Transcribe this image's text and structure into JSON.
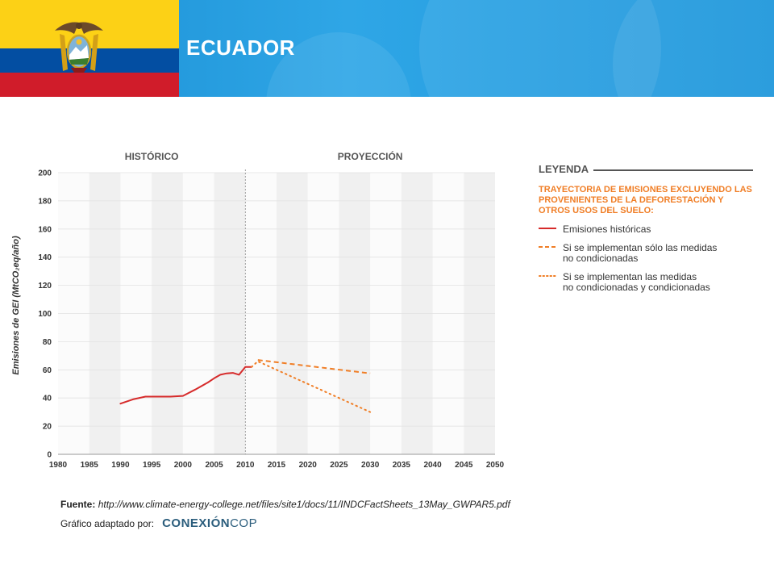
{
  "header": {
    "country": "ECUADOR",
    "accent": "#1a8fd4",
    "flag_colors": [
      "#fcd116",
      "#034ea2",
      "#d01c2a"
    ],
    "emblem": "coat-of-arms-of-ecuador"
  },
  "chart_data": {
    "type": "line",
    "title": "",
    "xlabel": "",
    "ylabel": "Emisiones de GEI (MtCO₂eq/año)",
    "xlim": [
      1980,
      2050
    ],
    "ylim": [
      0,
      200
    ],
    "x_ticks": [
      1980,
      1985,
      1990,
      1995,
      2000,
      2005,
      2010,
      2015,
      2020,
      2025,
      2030,
      2035,
      2040,
      2045,
      2050
    ],
    "y_ticks": [
      0,
      20,
      40,
      60,
      80,
      100,
      120,
      140,
      160,
      180,
      200
    ],
    "sections": [
      {
        "label": "HISTÓRICO",
        "from": 1980,
        "to": 2010
      },
      {
        "label": "PROYECCIÓN",
        "from": 2010,
        "to": 2050
      }
    ],
    "divider_x": 2010,
    "grid": true,
    "series": [
      {
        "name": "Emisiones históricas",
        "style": "solid",
        "color": "#d62b2b",
        "points": [
          [
            1990,
            36
          ],
          [
            1992,
            39
          ],
          [
            1994,
            41
          ],
          [
            1996,
            41
          ],
          [
            1998,
            41
          ],
          [
            2000,
            41.5
          ],
          [
            2002,
            46
          ],
          [
            2004,
            51
          ],
          [
            2005,
            54
          ],
          [
            2006,
            56.5
          ],
          [
            2007,
            57.5
          ],
          [
            2008,
            57.8
          ],
          [
            2009,
            56.5
          ],
          [
            2010,
            62
          ],
          [
            2011,
            62
          ]
        ]
      },
      {
        "name": "Si se implementan sólo las medidas no condicionadas",
        "style": "dashed",
        "color": "#f07e26",
        "points": [
          [
            2012,
            67
          ],
          [
            2030,
            57.5
          ]
        ]
      },
      {
        "name": "Si se implementan las medidas no condicionadas y condicionadas",
        "style": "dotted",
        "color": "#f07e26",
        "points": [
          [
            2011,
            62
          ],
          [
            2012,
            66
          ],
          [
            2030,
            30
          ]
        ]
      }
    ]
  },
  "legend": {
    "title": "LEYENDA",
    "subtitle": "TRAYECTORIA DE EMISIONES EXCLUYENDO LAS PROVENIENTES DE LA DEFORESTACIÓN Y OTROS USOS DEL SUELO:",
    "items": [
      {
        "lines": [
          "Emisiones históricas"
        ]
      },
      {
        "lines": [
          "Si se implementan sólo las medidas",
          "no condicionadas"
        ]
      },
      {
        "lines": [
          "Si se implementan las medidas",
          "no condicionadas y condicionadas"
        ]
      }
    ]
  },
  "footer": {
    "source_label": "Fuente:",
    "source_url": "http://www.climate-energy-college.net/files/site1/docs/11/INDCFactSheets_13May_GWPAR5.pdf",
    "credit_label": "Gráfico adaptado por:",
    "brand_bold": "CONEXIÓN",
    "brand_light": "COP"
  }
}
